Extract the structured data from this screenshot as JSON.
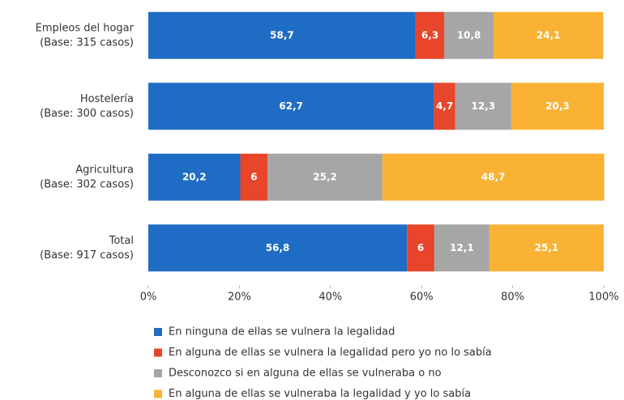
{
  "chart_data": {
    "type": "stacked-bar-horizontal",
    "categories": [
      "Empleos del hogar",
      "Hostelería",
      "Agricultura",
      "Total"
    ],
    "category_bases": [
      "(Base: 315 casos)",
      "(Base: 300 casos)",
      "(Base: 302 casos)",
      "(Base: 917 casos)"
    ],
    "series": [
      {
        "name": "En ninguna de ellas se vulnera la legalidad",
        "color": "#1f6cc4",
        "values": [
          58.7,
          62.7,
          20.2,
          56.8
        ],
        "value_labels": [
          "58,7",
          "62,7",
          "20,2",
          "56,8"
        ]
      },
      {
        "name": "En alguna de ellas se vulnera la legalidad pero yo no lo sabía",
        "color": "#e8452a",
        "values": [
          6.3,
          4.7,
          6,
          6
        ],
        "value_labels": [
          "6,3",
          "4,7",
          "6",
          "6"
        ]
      },
      {
        "name": "Desconozco si en alguna de ellas se vulneraba o no",
        "color": "#a6a6a6",
        "values": [
          10.8,
          12.3,
          25.2,
          12.1
        ],
        "value_labels": [
          "10,8",
          "12,3",
          "25,2",
          "12,1"
        ]
      },
      {
        "name": "En alguna de ellas se vulneraba la legalidad y yo lo sabía",
        "color": "#f9b233",
        "values": [
          24.1,
          20.3,
          48.7,
          25.1
        ],
        "value_labels": [
          "24,1",
          "20,3",
          "48,7",
          "25,1"
        ]
      }
    ],
    "xlim": [
      0,
      100
    ],
    "xticks": [
      {
        "value": 0,
        "label": "0%"
      },
      {
        "value": 20,
        "label": "20%"
      },
      {
        "value": 40,
        "label": "40%"
      },
      {
        "value": 60,
        "label": "60%"
      },
      {
        "value": 80,
        "label": "80%"
      },
      {
        "value": 100,
        "label": "100%"
      }
    ],
    "legend": "bottom"
  }
}
